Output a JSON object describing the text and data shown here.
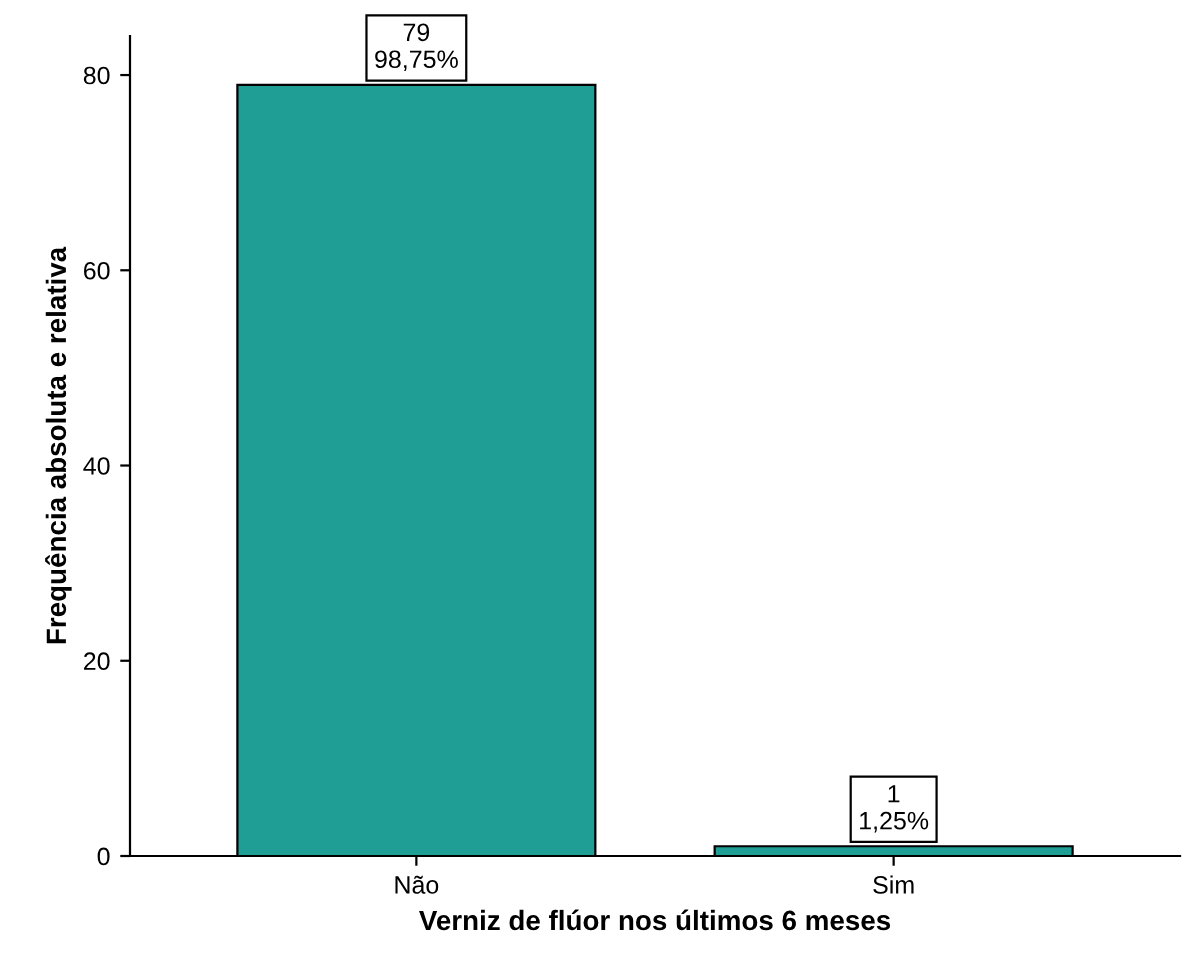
{
  "chart_data": {
    "type": "bar",
    "xlabel": "Verniz de flúor nos últimos 6 meses",
    "ylabel": "Frequência absoluta e relativa",
    "categories": [
      "Não",
      "Sim"
    ],
    "values": [
      79,
      1
    ],
    "color": "#1f9e96",
    "value_labels": [
      "79\n98,75%",
      "1\n1,25%"
    ],
    "ylim": [
      0,
      84
    ],
    "yticks": [
      0,
      20,
      40,
      60,
      80
    ],
    "grid": false
  }
}
